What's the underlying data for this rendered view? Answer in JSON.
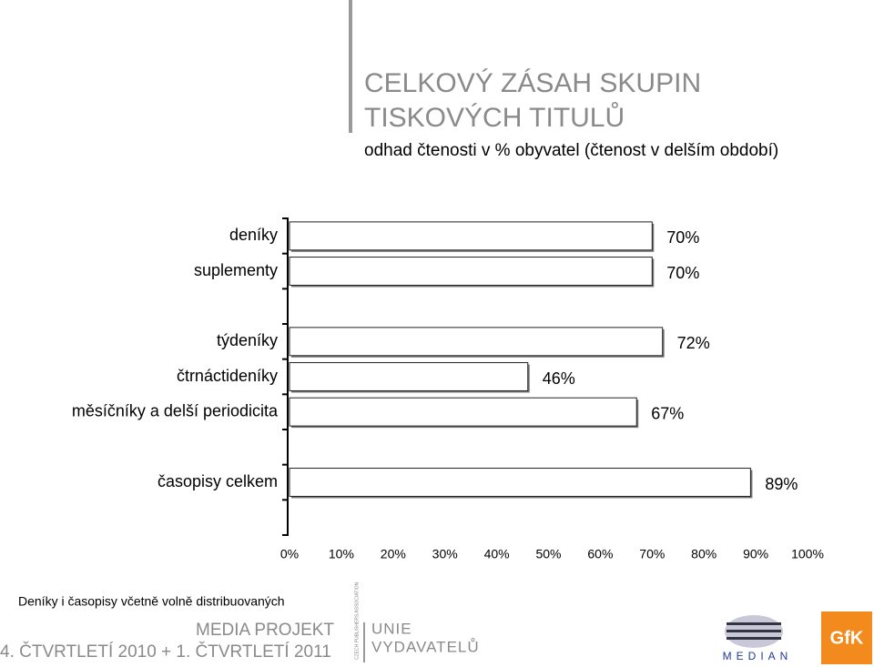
{
  "chart_data": {
    "type": "bar",
    "title": [
      "CELKOVÝ ZÁSAH SKUPIN",
      "TISKOVÝCH TITULŮ"
    ],
    "subtitle": "odhad čtenosti v % obyvatel (čtenost v delším období)",
    "categories": [
      "deníky",
      "suplementy",
      null,
      "týdeníky",
      "čtrnáctideníky",
      "měsíčníky a delší periodicita",
      null,
      "časopisy celkem",
      null
    ],
    "values": [
      70,
      70,
      null,
      72,
      46,
      67,
      null,
      89,
      null
    ],
    "value_labels": [
      "70%",
      "70%",
      null,
      "72%",
      "46%",
      "67%",
      null,
      "89%",
      null
    ],
    "color": "#ffffff",
    "xlim": [
      0,
      100
    ],
    "xticks": [
      {
        "value": 0,
        "label": "0%"
      },
      {
        "value": 10,
        "label": "10%"
      },
      {
        "value": 20,
        "label": "20%"
      },
      {
        "value": 30,
        "label": "30%"
      },
      {
        "value": 40,
        "label": "40%"
      },
      {
        "value": 50,
        "label": "50%"
      },
      {
        "value": 60,
        "label": "60%"
      },
      {
        "value": 70,
        "label": "70%"
      },
      {
        "value": 80,
        "label": "80%"
      },
      {
        "value": 90,
        "label": "90%"
      },
      {
        "value": 100,
        "label": "100%"
      }
    ],
    "grid": false,
    "note": "Deníky i časopisy včetně volně distribuovaných"
  },
  "footer": {
    "media_projekt": "MEDIA PROJEKT",
    "period": "4. ČTVRTLETÍ 2010 + 1. ČTVRTLETÍ 2011",
    "association": "CZECH PUBLISHERS ASSOCIATION",
    "unie": "UNIE",
    "vydavatelu": "VYDAVATELŮ",
    "median": "MEDIAN",
    "gfk": "GfK"
  }
}
